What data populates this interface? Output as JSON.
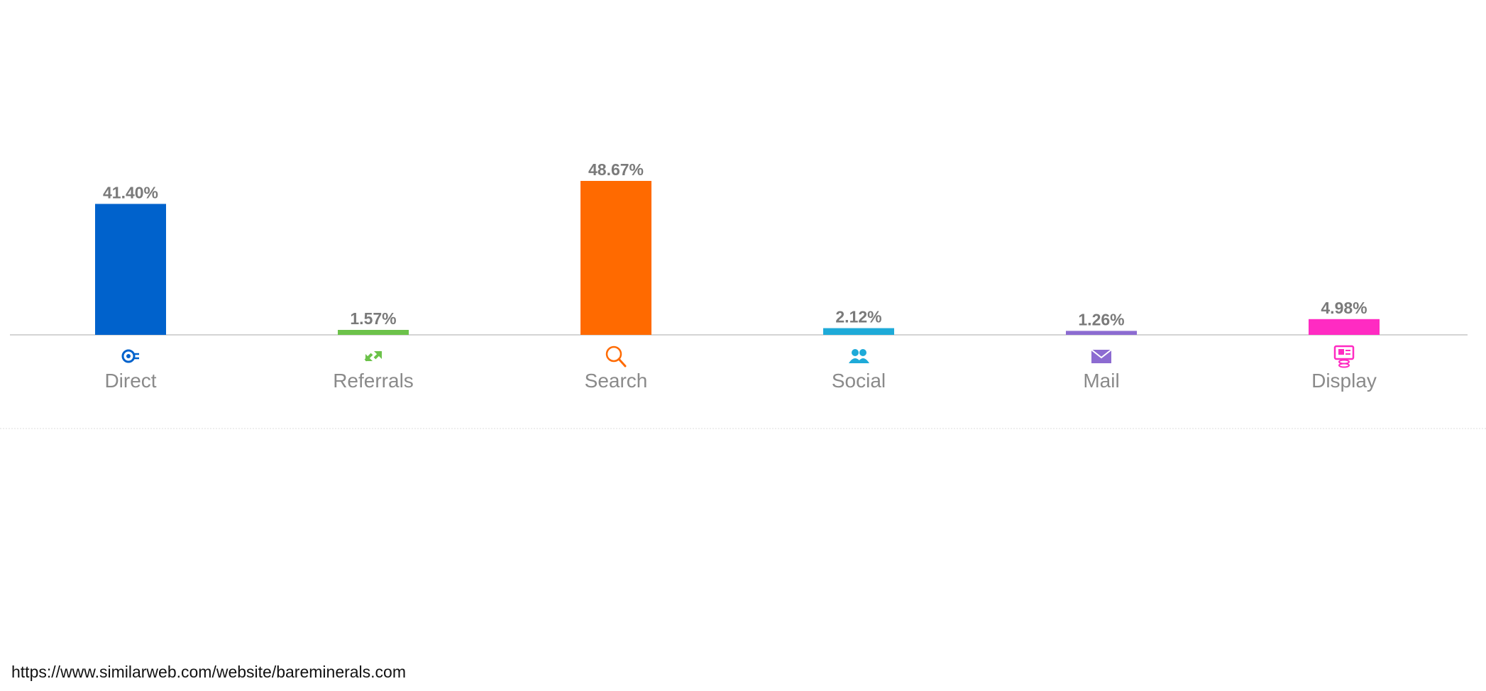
{
  "chart_data": {
    "type": "bar",
    "categories": [
      "Direct",
      "Referrals",
      "Search",
      "Social",
      "Mail",
      "Display"
    ],
    "values": [
      41.4,
      1.57,
      48.67,
      2.12,
      1.26,
      4.98
    ],
    "value_labels": [
      "41.40%",
      "1.57%",
      "48.67%",
      "2.12%",
      "1.26%",
      "4.98%"
    ],
    "colors": [
      "#0062cc",
      "#6cc24a",
      "#ff6a00",
      "#1eaad8",
      "#8c6bd1",
      "#ff2bc2"
    ],
    "icons": [
      "direct-icon",
      "referrals-icon",
      "search-icon",
      "social-icon",
      "mail-icon",
      "display-icon"
    ],
    "title": "",
    "xlabel": "",
    "ylabel": "",
    "ylim": [
      0,
      48.67
    ],
    "grid": false,
    "legend": "none"
  },
  "footer": {
    "source_url": "https://www.similarweb.com/website/bareminerals.com"
  }
}
